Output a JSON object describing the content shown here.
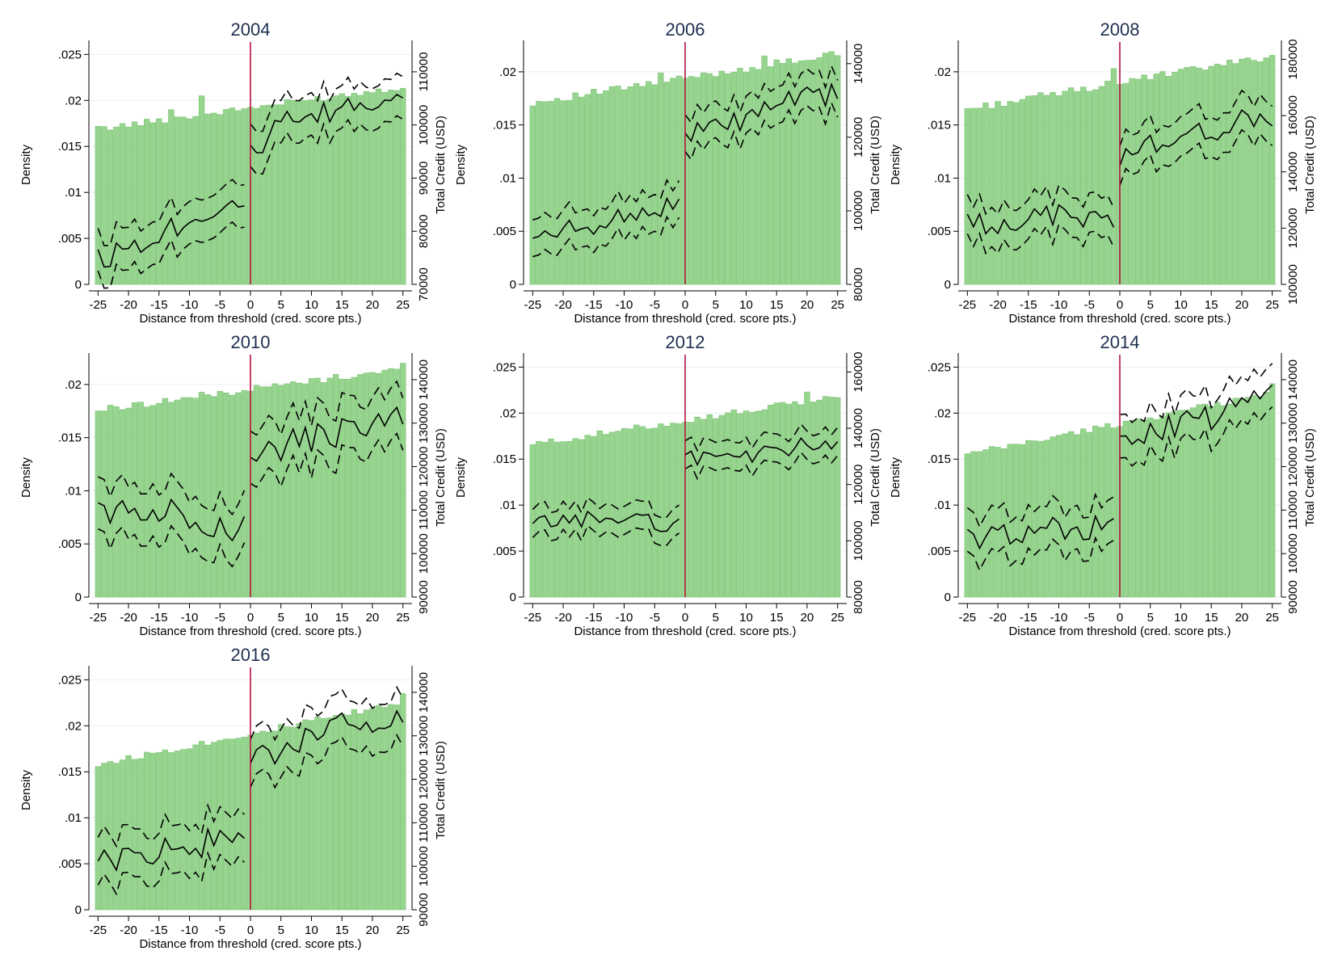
{
  "figure": {
    "bar_color": "#97d48f",
    "bar_edge": "#7cc474",
    "threshold_color": "#b5123b",
    "line_color": "#000000"
  },
  "chart_data": [
    {
      "type": "bar",
      "title": "2004",
      "xlabel": "Distance from threshold (cred. score pts.)",
      "ylabel": "Density",
      "y2label": "Total Credit (USD)",
      "xlim": [
        -26.5,
        26.5
      ],
      "xticks": [
        "-25",
        "-20",
        "-15",
        "-10",
        "-5",
        "0",
        "5",
        "10",
        "15",
        "20",
        "25"
      ],
      "ylim": [
        0,
        0.026
      ],
      "yticks": [
        "0",
        ".005",
        ".01",
        ".015",
        ".02",
        ".025"
      ],
      "yticks_v": [
        0,
        0.005,
        0.01,
        0.015,
        0.02,
        0.025
      ],
      "y2lim": [
        70000,
        115000
      ],
      "y2ticks": [
        "70000",
        "80000",
        "90000",
        "100000",
        "110000"
      ],
      "y2ticks_v": [
        70000,
        80000,
        90000,
        100000,
        110000
      ],
      "density_start": 0.0169,
      "density_end": 0.0215,
      "density_bumps": {
        "-8": 0.0205,
        "-13": 0.019
      },
      "credit_points": [
        [
          -25,
          74500
        ],
        [
          -20,
          77000
        ],
        [
          -15,
          80000
        ],
        [
          -10,
          82000
        ],
        [
          -5,
          85000
        ],
        [
          -1,
          86500
        ],
        [
          0,
          94000
        ],
        [
          5,
          100000
        ],
        [
          10,
          101000
        ],
        [
          15,
          103000
        ],
        [
          20,
          104000
        ],
        [
          25,
          107000
        ]
      ],
      "ci_halfwidth": 4000
    },
    {
      "type": "bar",
      "title": "2006",
      "xlabel": "Distance from threshold (cred. score pts.)",
      "ylabel": "Density",
      "y2label": "Total Credit (USD)",
      "xlim": [
        -26.5,
        26.5
      ],
      "xticks": [
        "-25",
        "-20",
        "-15",
        "-10",
        "-5",
        "0",
        "5",
        "10",
        "15",
        "20",
        "25"
      ],
      "ylim": [
        0,
        0.0225
      ],
      "yticks": [
        "0",
        ".005",
        ".01",
        ".015",
        ".02"
      ],
      "yticks_v": [
        0,
        0.005,
        0.01,
        0.015,
        0.02
      ],
      "y2lim": [
        80000,
        145000
      ],
      "y2ticks": [
        "80000",
        "100000",
        "120000",
        "140000"
      ],
      "y2ticks_v": [
        80000,
        100000,
        120000,
        140000
      ],
      "density_start": 0.0171,
      "density_end": 0.0217,
      "density_bumps": {
        "13": 0.0215,
        "-4": 0.0199
      },
      "credit_points": [
        [
          -25,
          91500
        ],
        [
          -20,
          94000
        ],
        [
          -15,
          96500
        ],
        [
          -10,
          98500
        ],
        [
          -5,
          100500
        ],
        [
          -1,
          102000
        ],
        [
          0,
          121000
        ],
        [
          5,
          122500
        ],
        [
          10,
          125000
        ],
        [
          15,
          128500
        ],
        [
          20,
          131000
        ],
        [
          25,
          131500
        ]
      ],
      "ci_halfwidth": 5000
    },
    {
      "type": "bar",
      "title": "2008",
      "xlabel": "Distance from threshold (cred. score pts.)",
      "ylabel": "Density",
      "y2label": "Total Credit (USD)",
      "xlim": [
        -26.5,
        26.5
      ],
      "xticks": [
        "-25",
        "-20",
        "-15",
        "-10",
        "-5",
        "0",
        "5",
        "10",
        "15",
        "20",
        "25"
      ],
      "ylim": [
        0,
        0.0225
      ],
      "yticks": [
        "0",
        ".005",
        ".01",
        ".015",
        ".02"
      ],
      "yticks_v": [
        0,
        0.005,
        0.01,
        0.015,
        0.02
      ],
      "y2lim": [
        100000,
        185000
      ],
      "y2ticks": [
        "100000",
        "120000",
        "140000",
        "160000",
        "180000"
      ],
      "y2ticks_v": [
        100000,
        120000,
        140000,
        160000,
        180000
      ],
      "density_start": 0.0165,
      "density_end": 0.0215,
      "density_bumps": {
        "-1": 0.0203
      },
      "credit_points": [
        [
          -25,
          121000
        ],
        [
          -20,
          122000
        ],
        [
          -15,
          123000
        ],
        [
          -10,
          125000
        ],
        [
          -5,
          123500
        ],
        [
          -1,
          124000
        ],
        [
          0,
          143000
        ],
        [
          5,
          150000
        ],
        [
          10,
          152500
        ],
        [
          15,
          154500
        ],
        [
          20,
          158000
        ],
        [
          25,
          159000
        ]
      ],
      "ci_halfwidth": 7000
    },
    {
      "type": "bar",
      "title": "2010",
      "xlabel": "Distance from threshold (cred. score pts.)",
      "ylabel": "Density",
      "y2label": "Total Credit (USD)",
      "xlim": [
        -26.5,
        26.5
      ],
      "xticks": [
        "-25",
        "-20",
        "-15",
        "-10",
        "-5",
        "0",
        "5",
        "10",
        "15",
        "20",
        "25"
      ],
      "ylim": [
        0,
        0.0225
      ],
      "yticks": [
        "0",
        ".005",
        ".01",
        ".015",
        ".02"
      ],
      "yticks_v": [
        0,
        0.005,
        0.01,
        0.015,
        0.02
      ],
      "y2lim": [
        90000,
        145000
      ],
      "y2ticks": [
        "90000",
        "100000",
        "110000",
        "120000",
        "130000",
        "140000"
      ],
      "y2ticks_v": [
        90000,
        100000,
        110000,
        120000,
        130000,
        140000
      ],
      "density_start": 0.0176,
      "density_end": 0.0215,
      "density_bumps": {
        "25": 0.022
      },
      "credit_points": [
        [
          -25,
          109000
        ],
        [
          -20,
          110500
        ],
        [
          -15,
          110000
        ],
        [
          -10,
          108500
        ],
        [
          -5,
          107000
        ],
        [
          -1,
          105000
        ],
        [
          0,
          123000
        ],
        [
          5,
          124500
        ],
        [
          10,
          126000
        ],
        [
          15,
          128000
        ],
        [
          20,
          130000
        ],
        [
          25,
          130500
        ]
      ],
      "ci_halfwidth": 6000
    },
    {
      "type": "bar",
      "title": "2012",
      "xlabel": "Distance from threshold (cred. score pts.)",
      "ylabel": "Density",
      "y2label": "Total Credit (USD)",
      "xlim": [
        -26.5,
        26.5
      ],
      "xticks": [
        "-25",
        "-20",
        "-15",
        "-10",
        "-5",
        "0",
        "5",
        "10",
        "15",
        "20",
        "25"
      ],
      "ylim": [
        0,
        0.026
      ],
      "yticks": [
        "0",
        ".005",
        ".01",
        ".015",
        ".02",
        ".025"
      ],
      "yticks_v": [
        0,
        0.005,
        0.01,
        0.015,
        0.02,
        0.025
      ],
      "y2lim": [
        80000,
        165000
      ],
      "y2ticks": [
        "80000",
        "100000",
        "120000",
        "140000",
        "160000"
      ],
      "y2ticks_v": [
        80000,
        100000,
        120000,
        140000,
        160000
      ],
      "density_start": 0.0166,
      "density_end": 0.0218,
      "density_bumps": {
        "20": 0.0223
      },
      "credit_points": [
        [
          -25,
          106000
        ],
        [
          -20,
          107000
        ],
        [
          -15,
          108000
        ],
        [
          -10,
          108500
        ],
        [
          -5,
          106000
        ],
        [
          -1,
          106500
        ],
        [
          0,
          129000
        ],
        [
          5,
          131000
        ],
        [
          10,
          130000
        ],
        [
          15,
          131500
        ],
        [
          20,
          134000
        ],
        [
          25,
          136000
        ]
      ],
      "ci_halfwidth": 5000
    },
    {
      "type": "bar",
      "title": "2014",
      "xlabel": "Distance from threshold (cred. score pts.)",
      "ylabel": "Density",
      "y2label": "Total Credit (USD)",
      "xlim": [
        -26.5,
        26.5
      ],
      "xticks": [
        "-25",
        "-20",
        "-15",
        "-10",
        "-5",
        "0",
        "5",
        "10",
        "15",
        "20",
        "25"
      ],
      "ylim": [
        0,
        0.026
      ],
      "yticks": [
        "0",
        ".005",
        ".01",
        ".015",
        ".02",
        ".025"
      ],
      "yticks_v": [
        0,
        0.005,
        0.01,
        0.015,
        0.02,
        0.025
      ],
      "y2lim": [
        90000,
        145000
      ],
      "y2ticks": [
        "90000",
        "100000",
        "110000",
        "120000",
        "130000",
        "140000"
      ],
      "y2ticks_v": [
        90000,
        100000,
        110000,
        120000,
        130000,
        140000
      ],
      "density_start": 0.0155,
      "density_end": 0.0222,
      "density_bumps": {
        "25": 0.0232
      },
      "credit_points": [
        [
          -25,
          103000
        ],
        [
          -20,
          104500
        ],
        [
          -15,
          105500
        ],
        [
          -10,
          106000
        ],
        [
          -5,
          105500
        ],
        [
          -1,
          106000
        ],
        [
          0,
          125000
        ],
        [
          5,
          128000
        ],
        [
          10,
          130000
        ],
        [
          15,
          131000
        ],
        [
          20,
          134500
        ],
        [
          25,
          137000
        ]
      ],
      "ci_halfwidth": 5000
    },
    {
      "type": "bar",
      "title": "2016",
      "xlabel": "Distance from threshold (cred. score pts.)",
      "ylabel": "Density",
      "y2label": "Total Credit (USD)",
      "xlim": [
        -26.5,
        26.5
      ],
      "xticks": [
        "-25",
        "-20",
        "-15",
        "-10",
        "-5",
        "0",
        "5",
        "10",
        "15",
        "20",
        "25"
      ],
      "ylim": [
        0,
        0.026
      ],
      "yticks": [
        "0",
        ".005",
        ".01",
        ".015",
        ".02",
        ".025"
      ],
      "yticks_v": [
        0,
        0.005,
        0.01,
        0.015,
        0.02,
        0.025
      ],
      "y2lim": [
        90000,
        145000
      ],
      "y2ticks": [
        "90000",
        "100000",
        "110000",
        "120000",
        "130000",
        "140000"
      ],
      "y2ticks_v": [
        90000,
        100000,
        110000,
        120000,
        130000,
        140000
      ],
      "density_start": 0.0158,
      "density_end": 0.0225,
      "density_bumps": {
        "25": 0.0235
      },
      "credit_points": [
        [
          -25,
          101000
        ],
        [
          -20,
          102000
        ],
        [
          -15,
          103500
        ],
        [
          -10,
          104500
        ],
        [
          -5,
          106000
        ],
        [
          -1,
          107000
        ],
        [
          0,
          124000
        ],
        [
          5,
          127000
        ],
        [
          10,
          129000
        ],
        [
          15,
          132000
        ],
        [
          20,
          134000
        ],
        [
          25,
          135000
        ]
      ],
      "ci_halfwidth": 5500
    }
  ]
}
